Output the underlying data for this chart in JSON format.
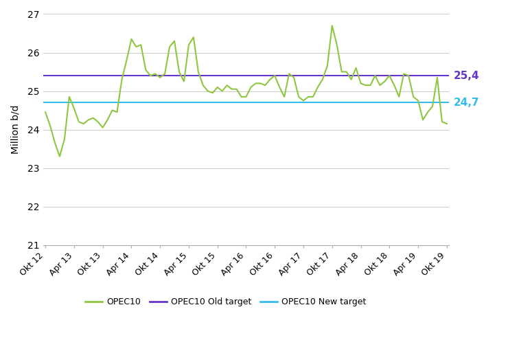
{
  "title": "",
  "ylabel": "Million b/d",
  "old_target": 25.4,
  "new_target": 24.7,
  "old_target_color": "#6633cc",
  "new_target_color": "#33bbee",
  "line_color": "#8dc63f",
  "old_target_label": "OPEC10 Old target",
  "new_target_label": "OPEC10 New target",
  "opec10_label": "OPEC10",
  "ylim": [
    21,
    27
  ],
  "yticks": [
    21,
    22,
    23,
    24,
    25,
    26,
    27
  ],
  "xtick_labels": [
    "Okt 12",
    "Apr 13",
    "Okt 13",
    "Apr 14",
    "Okt 14",
    "Apr 15",
    "Okt 15",
    "Apr 16",
    "Okt 16",
    "Apr 17",
    "Okt 17",
    "Apr 18",
    "Okt 18",
    "Apr 19",
    "Okt 19"
  ],
  "opec10_values": [
    24.45,
    24.1,
    23.65,
    23.3,
    23.75,
    24.85,
    24.55,
    24.2,
    24.15,
    24.25,
    24.3,
    24.2,
    24.05,
    24.25,
    24.5,
    24.45,
    25.3,
    25.8,
    26.35,
    26.15,
    26.2,
    25.55,
    25.4,
    25.45,
    25.35,
    25.45,
    26.15,
    26.3,
    25.5,
    25.25,
    26.2,
    26.4,
    25.5,
    25.15,
    25.0,
    24.95,
    25.1,
    25.0,
    25.15,
    25.05,
    25.05,
    24.85,
    24.85,
    25.1,
    25.2,
    25.2,
    25.15,
    25.3,
    25.4,
    25.1,
    24.85,
    25.45,
    25.35,
    24.85,
    24.75,
    24.85,
    24.85,
    25.1,
    25.3,
    25.65,
    26.7,
    26.2,
    25.5,
    25.5,
    25.3,
    25.6,
    25.2,
    25.15,
    25.15,
    25.4,
    25.15,
    25.25,
    25.4,
    25.15,
    24.85,
    25.45,
    25.4,
    24.85,
    24.75,
    24.25,
    24.45,
    24.6,
    25.35,
    24.2,
    24.15
  ]
}
